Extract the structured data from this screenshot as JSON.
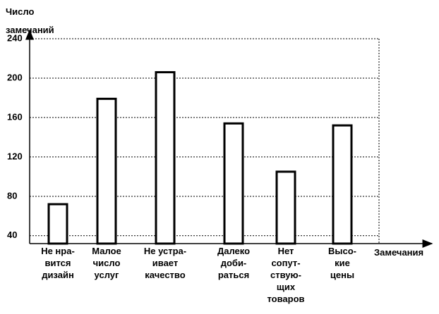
{
  "chart_data": {
    "type": "bar",
    "y_label": "Число\nзамечаний",
    "x_label": "Замечания",
    "categories": [
      "Не нра-\nвится\nдизайн",
      "Малое\nчисло\nуслуг",
      "Не устра-\nивает\nкачество",
      "Далеко\nдоби-\nраться",
      "Нет\nсопут-\nствую-\nщих\nтоваров",
      "Высо-\nкие\nцены"
    ],
    "values": [
      72,
      179,
      206,
      154,
      105,
      152
    ],
    "color": "#ffffff",
    "ylim": [
      32,
      240
    ],
    "yticks": [
      40,
      80,
      120,
      160,
      200,
      240
    ],
    "grid": true
  }
}
